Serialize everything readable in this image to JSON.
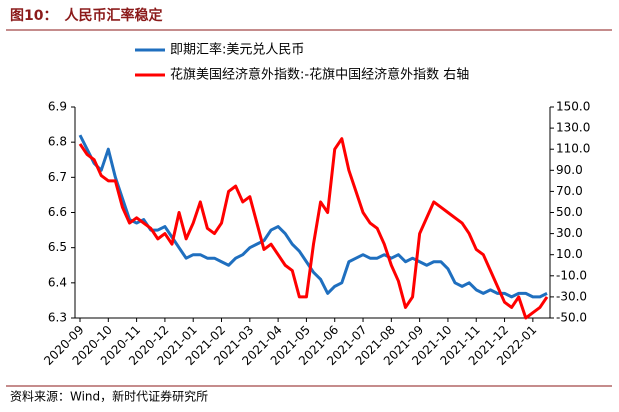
{
  "header": {
    "title": "图10：　人民币汇率稳定"
  },
  "chart_data": {
    "type": "line",
    "categories": [
      "2020-09",
      null,
      null,
      null,
      "2020-10",
      null,
      null,
      null,
      "2020-11",
      null,
      null,
      null,
      "2020-12",
      null,
      null,
      null,
      "2021-01",
      null,
      null,
      null,
      "2021-02",
      null,
      null,
      null,
      "2021-03",
      null,
      null,
      null,
      "2021-04",
      null,
      null,
      null,
      "2021-05",
      null,
      null,
      null,
      "2021-06",
      null,
      null,
      null,
      "2021-07",
      null,
      null,
      null,
      "2021-08",
      null,
      null,
      null,
      "2021-09",
      null,
      null,
      null,
      "2021-10",
      null,
      null,
      null,
      "2021-11",
      null,
      null,
      null,
      "2021-12",
      null,
      null,
      null,
      "2022-01",
      null,
      null
    ],
    "series": [
      {
        "name": "即期汇率:美元兑人民币",
        "color": "#1f6fbf",
        "axis": "y",
        "values": [
          6.82,
          6.78,
          6.74,
          6.72,
          6.78,
          6.7,
          6.64,
          6.58,
          6.57,
          6.58,
          6.55,
          6.55,
          6.56,
          6.53,
          6.5,
          6.47,
          6.48,
          6.48,
          6.47,
          6.47,
          6.46,
          6.45,
          6.47,
          6.48,
          6.5,
          6.51,
          6.52,
          6.55,
          6.56,
          6.54,
          6.51,
          6.49,
          6.46,
          6.43,
          6.41,
          6.37,
          6.39,
          6.4,
          6.46,
          6.47,
          6.48,
          6.47,
          6.47,
          6.48,
          6.47,
          6.48,
          6.46,
          6.47,
          6.46,
          6.45,
          6.46,
          6.46,
          6.44,
          6.4,
          6.39,
          6.4,
          6.38,
          6.37,
          6.38,
          6.37,
          6.37,
          6.36,
          6.37,
          6.37,
          6.36,
          6.36,
          6.37
        ]
      },
      {
        "name": "花旗美国经济意外指数:-花旗中国经济意外指数 右轴",
        "color": "#ff0000",
        "axis": "y2",
        "values": [
          115,
          105,
          100,
          85,
          80,
          80,
          55,
          40,
          45,
          40,
          35,
          25,
          30,
          20,
          50,
          25,
          40,
          60,
          35,
          30,
          40,
          70,
          75,
          60,
          65,
          40,
          15,
          20,
          10,
          0,
          -5,
          -30,
          -30,
          20,
          60,
          50,
          110,
          120,
          90,
          70,
          50,
          40,
          35,
          20,
          0,
          -15,
          -40,
          -30,
          30,
          45,
          60,
          55,
          50,
          45,
          40,
          30,
          15,
          10,
          -5,
          -20,
          -35,
          -40,
          -30,
          -50,
          -45,
          -40,
          -30
        ]
      }
    ],
    "ylim": [
      6.3,
      6.9
    ],
    "yticks": [
      6.3,
      6.4,
      6.5,
      6.6,
      6.7,
      6.8,
      6.9
    ],
    "y2lim": [
      -50,
      150
    ],
    "y2ticks": [
      {
        "value": -50,
        "label": "-50.0"
      },
      {
        "value": -30,
        "label": "-30.0"
      },
      {
        "value": -10,
        "label": "-10.0"
      },
      {
        "value": 10,
        "label": "10.0"
      },
      {
        "value": 30,
        "label": "30.0"
      },
      {
        "value": 50,
        "label": "50.0"
      },
      {
        "value": 70,
        "label": "70.0"
      },
      {
        "value": 90,
        "label": "90.0"
      },
      {
        "value": 110,
        "label": "110.0"
      },
      {
        "value": 130,
        "label": "130.0"
      },
      {
        "value": 150,
        "label": "150.0"
      }
    ]
  },
  "footer": {
    "source": "资料来源：Wind，新时代证券研究所"
  }
}
